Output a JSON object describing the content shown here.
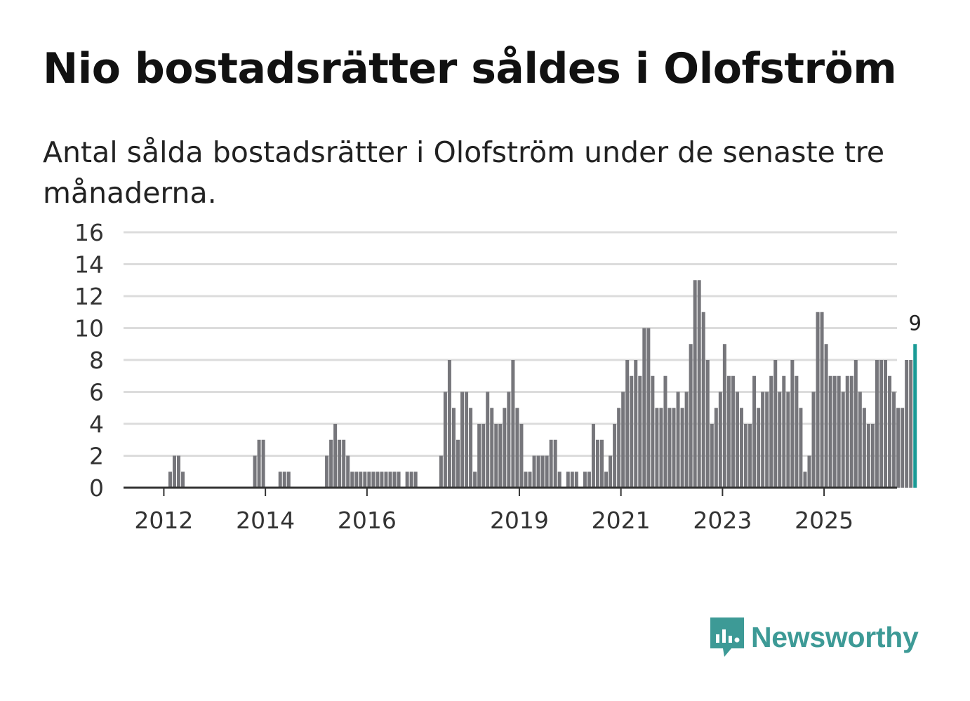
{
  "title": "Nio bostadsrätter såldes i Olofström",
  "subtitle": "Antal sålda bostadsrätter i Olofström under de senaste tre månaderna.",
  "brand": {
    "name": "Newsworthy",
    "logo_icon": "newsworthy-chart-bubble-icon",
    "color": "#3d9a96"
  },
  "chart_data": {
    "type": "bar",
    "title": "Nio bostadsrätter såldes i Olofström",
    "subtitle": "Antal sålda bostadsrätter i Olofström under de senaste tre månaderna.",
    "xlabel": "",
    "ylabel": "",
    "ylim": [
      0,
      16
    ],
    "yticks": [
      "0",
      "2",
      "4",
      "6",
      "8",
      "10",
      "12",
      "14",
      "16"
    ],
    "grid": true,
    "bar_color": "#76767b",
    "highlight_color": "#1a9b96",
    "x_start": {
      "year": 2011,
      "month": 9
    },
    "xticks": [
      {
        "label": "2012",
        "year": 2012
      },
      {
        "label": "2014",
        "year": 2014
      },
      {
        "label": "2016",
        "year": 2016
      },
      {
        "label": "2019",
        "year": 2019
      },
      {
        "label": "2021",
        "year": 2021
      },
      {
        "label": "2023",
        "year": 2023
      },
      {
        "label": "2025",
        "year": 2025
      }
    ],
    "values": [
      0,
      0,
      0,
      0,
      0,
      1,
      2,
      2,
      1,
      0,
      0,
      0,
      0,
      0,
      0,
      0,
      0,
      0,
      0,
      0,
      0,
      0,
      0,
      0,
      0,
      2,
      3,
      3,
      0,
      0,
      0,
      1,
      1,
      1,
      0,
      0,
      0,
      0,
      0,
      0,
      0,
      0,
      2,
      3,
      4,
      3,
      3,
      2,
      1,
      1,
      1,
      1,
      1,
      1,
      1,
      1,
      1,
      1,
      1,
      1,
      0,
      1,
      1,
      1,
      0,
      0,
      0,
      0,
      0,
      2,
      6,
      8,
      5,
      3,
      6,
      6,
      5,
      1,
      4,
      4,
      6,
      5,
      4,
      4,
      5,
      6,
      8,
      5,
      4,
      1,
      1,
      2,
      2,
      2,
      2,
      3,
      3,
      1,
      0,
      1,
      1,
      1,
      0,
      1,
      1,
      4,
      3,
      3,
      1,
      2,
      4,
      5,
      6,
      8,
      7,
      8,
      7,
      10,
      10,
      7,
      5,
      5,
      7,
      5,
      5,
      6,
      5,
      6,
      9,
      13,
      13,
      11,
      8,
      4,
      5,
      6,
      9,
      7,
      7,
      6,
      5,
      4,
      4,
      7,
      5,
      6,
      6,
      7,
      8,
      6,
      7,
      6,
      8,
      7,
      5,
      1,
      2,
      6,
      11,
      11,
      9,
      7,
      7,
      7,
      6,
      7,
      7,
      8,
      6,
      5,
      4,
      4,
      8,
      8,
      8,
      7,
      6,
      5,
      5,
      8,
      8,
      9
    ],
    "last_value_label": "9"
  }
}
